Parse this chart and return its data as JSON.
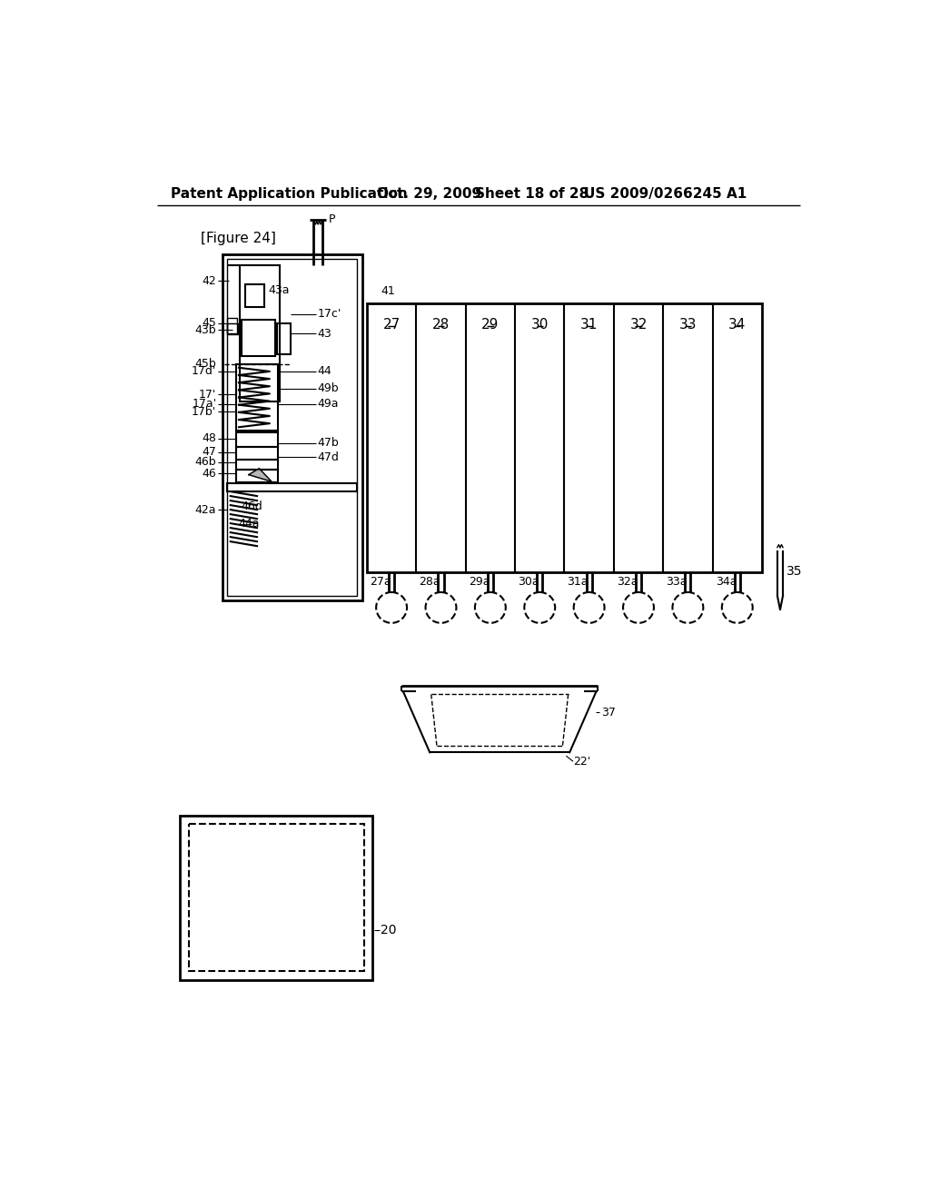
{
  "bg_color": "#ffffff",
  "header_text": "Patent Application Publication",
  "header_date": "Oct. 29, 2009",
  "header_sheet": "Sheet 18 of 28",
  "header_patent": "US 2009/0266245 A1",
  "figure_label": "[Figure 24]",
  "label_20": "20",
  "label_22p": "22'",
  "label_37": "37",
  "label_35": "35",
  "label_41": "41",
  "label_42": "42",
  "label_42a": "42a",
  "label_43": "43",
  "label_43a": "43a",
  "label_43b": "43b",
  "label_44": "44",
  "label_44a": "44a",
  "label_45": "45",
  "label_45b": "45b",
  "label_46": "46",
  "label_46b": "46b",
  "label_46d": "46d",
  "label_47": "47",
  "label_47b": "47b",
  "label_47d": "47d",
  "label_48": "48",
  "label_49a": "49a",
  "label_49b": "49b",
  "label_P": "P",
  "label_17cp": "17c'",
  "label_17dp": "17d'",
  "label_17p": "17'",
  "label_17ap": "17a'",
  "label_17bp": "17b'",
  "panel_labels": [
    "27",
    "28",
    "29",
    "30",
    "31",
    "32",
    "33",
    "34"
  ],
  "panel_bottom_labels": [
    "27a",
    "28a",
    "29a",
    "30a",
    "31a",
    "32a",
    "33a",
    "34a"
  ]
}
